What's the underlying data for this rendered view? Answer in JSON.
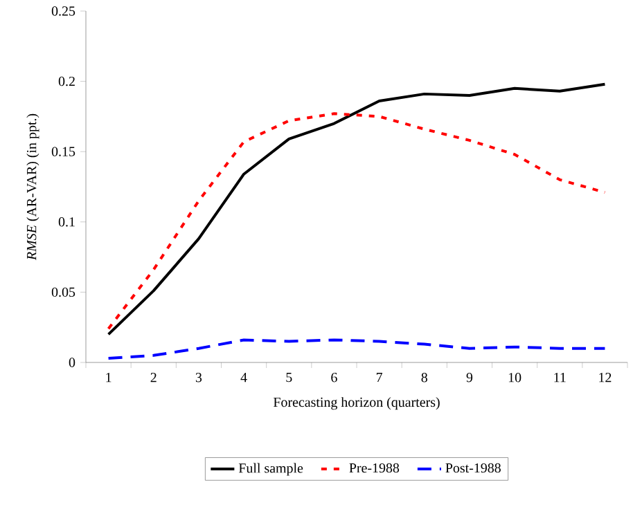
{
  "chart_data": {
    "type": "line",
    "xlabel": "Forecasting horizon (quarters)",
    "ylabel": "*RMSE*  (AR-VAR) (in ppt.)",
    "categories": [
      "1",
      "2",
      "3",
      "4",
      "5",
      "6",
      "7",
      "8",
      "9",
      "10",
      "11",
      "12"
    ],
    "series": [
      {
        "name": "Full sample",
        "color": "#000000",
        "line_style": "solid",
        "values": [
          0.02,
          0.051,
          0.088,
          0.134,
          0.159,
          0.17,
          0.186,
          0.191,
          0.19,
          0.195,
          0.193,
          0.198
        ]
      },
      {
        "name": "Pre-1988",
        "color": "#ff0000",
        "line_style": "dotted",
        "values": [
          0.024,
          0.066,
          0.115,
          0.157,
          0.172,
          0.177,
          0.175,
          0.166,
          0.158,
          0.148,
          0.13,
          0.121
        ]
      },
      {
        "name": "Post-1988",
        "color": "#0000ff",
        "line_style": "dashed",
        "values": [
          0.003,
          0.005,
          0.01,
          0.016,
          0.015,
          0.016,
          0.015,
          0.013,
          0.01,
          0.011,
          0.01,
          0.01
        ]
      }
    ],
    "ylim": [
      0,
      0.25
    ],
    "yticks": [
      0,
      0.05,
      0.1,
      0.15,
      0.2,
      0.25
    ],
    "legend": "bottom"
  }
}
